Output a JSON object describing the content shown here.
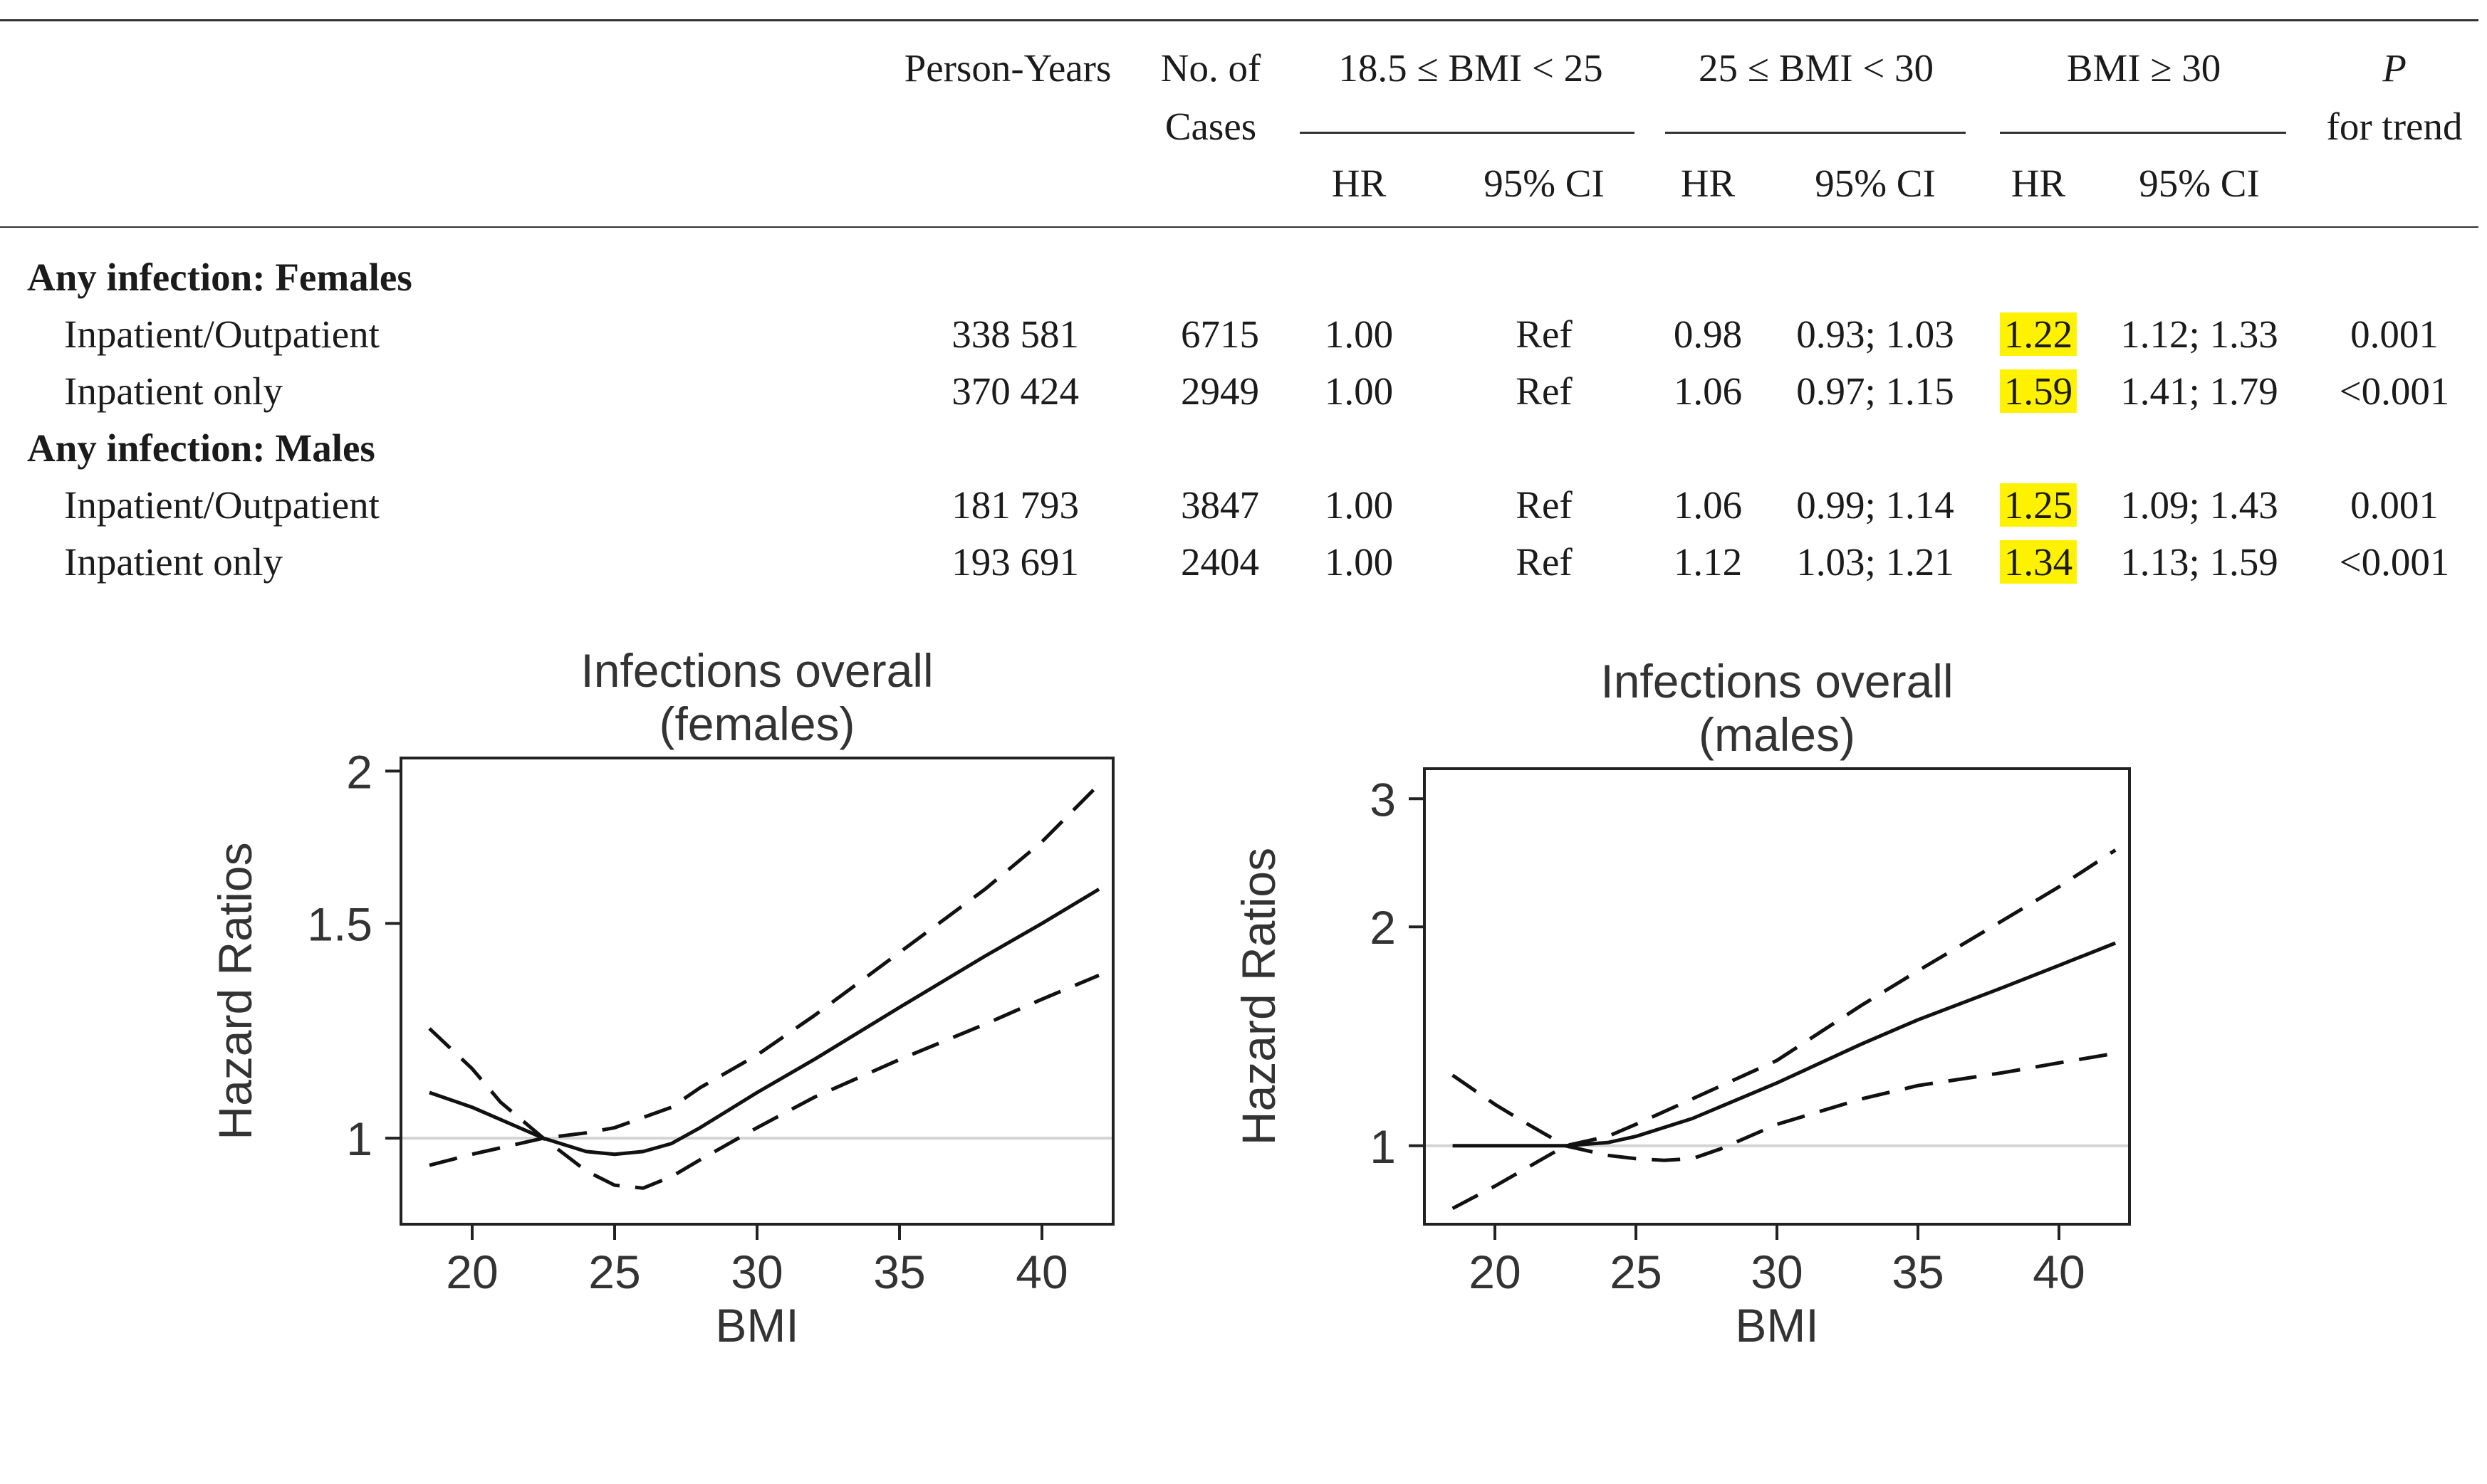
{
  "table": {
    "headers": {
      "person_years": "Person-Years",
      "cases_line1": "No. of",
      "cases_line2": "Cases",
      "group1": "18.5 ≤ BMI < 25",
      "group2": "25 ≤ BMI < 30",
      "group3": "BMI ≥ 30",
      "p_line1": "P",
      "p_line2": "for trend",
      "hr": "HR",
      "ci": "95% CI"
    },
    "sections": [
      {
        "title": "Any infection: Females",
        "rows": [
          {
            "label": "Inpatient/Outpatient",
            "person_years": "338 581",
            "cases": "6715",
            "hr1": "1.00",
            "ci1": "Ref",
            "hr2": "0.98",
            "ci2": "0.93; 1.03",
            "hr3": "1.22",
            "ci3": "1.12; 1.33",
            "p": "0.001"
          },
          {
            "label": "Inpatient only",
            "person_years": "370 424",
            "cases": "2949",
            "hr1": "1.00",
            "ci1": "Ref",
            "hr2": "1.06",
            "ci2": "0.97; 1.15",
            "hr3": "1.59",
            "ci3": "1.41; 1.79",
            "p": "<0.001"
          }
        ]
      },
      {
        "title": "Any infection: Males",
        "rows": [
          {
            "label": "Inpatient/Outpatient",
            "person_years": "181 793",
            "cases": "3847",
            "hr1": "1.00",
            "ci1": "Ref",
            "hr2": "1.06",
            "ci2": "0.99; 1.14",
            "hr3": "1.25",
            "ci3": "1.09; 1.43",
            "p": "0.001"
          },
          {
            "label": "Inpatient only",
            "person_years": "193 691",
            "cases": "2404",
            "hr1": "1.00",
            "ci1": "Ref",
            "hr2": "1.12",
            "ci2": "1.03; 1.21",
            "hr3": "1.34",
            "ci3": "1.13; 1.59",
            "p": "<0.001"
          }
        ]
      }
    ],
    "highlight_color": "#fff200"
  },
  "chart_data": [
    {
      "type": "line",
      "title_line1": "Infections overall",
      "title_line2": "(females)",
      "xlabel": "BMI",
      "ylabel": "Hazard Ratios",
      "xlim": [
        17.5,
        42.5
      ],
      "ylim": [
        0.85,
        2.05
      ],
      "log_y": true,
      "xticks": [
        20,
        25,
        30,
        35,
        40
      ],
      "yticks": [
        1,
        1.5,
        2
      ],
      "ytick_labels": [
        "1",
        "1.5",
        "2"
      ],
      "reference_line": 1,
      "series": [
        {
          "style": "solid",
          "x": [
            18.5,
            20,
            22.5,
            24,
            25,
            26,
            27,
            28,
            30,
            32,
            35,
            38,
            40,
            42
          ],
          "y": [
            1.09,
            1.06,
            1.0,
            0.975,
            0.97,
            0.975,
            0.99,
            1.02,
            1.09,
            1.16,
            1.28,
            1.41,
            1.5,
            1.6
          ]
        },
        {
          "style": "dashed",
          "x": [
            18.5,
            20,
            21,
            22.5,
            24,
            25,
            26,
            27,
            28,
            30,
            32,
            35,
            38,
            40,
            42
          ],
          "y": [
            1.23,
            1.14,
            1.07,
            1.0,
            0.94,
            0.915,
            0.91,
            0.93,
            0.96,
            1.02,
            1.08,
            1.16,
            1.24,
            1.3,
            1.36
          ]
        },
        {
          "style": "dashed",
          "x": [
            18.5,
            20,
            22.5,
            24,
            25,
            27,
            28,
            30,
            32,
            35,
            38,
            40,
            42
          ],
          "y": [
            0.95,
            0.97,
            1.0,
            1.01,
            1.02,
            1.06,
            1.1,
            1.17,
            1.26,
            1.42,
            1.6,
            1.75,
            1.95
          ]
        }
      ]
    },
    {
      "type": "line",
      "title_line1": "Infections overall",
      "title_line2": "(males)",
      "xlabel": "BMI",
      "ylabel": "Hazard Ratios",
      "xlim": [
        17.5,
        42.5
      ],
      "ylim": [
        0.78,
        3.3
      ],
      "log_y": true,
      "xticks": [
        20,
        25,
        30,
        35,
        40
      ],
      "yticks": [
        1,
        2,
        3
      ],
      "ytick_labels": [
        "1",
        "2",
        "3"
      ],
      "reference_line": 1,
      "series": [
        {
          "style": "solid",
          "x": [
            18.5,
            20,
            22.5,
            24,
            25,
            27,
            30,
            33,
            35,
            38,
            40,
            42
          ],
          "y": [
            1.0,
            1.0,
            1.0,
            1.01,
            1.03,
            1.09,
            1.22,
            1.38,
            1.49,
            1.65,
            1.77,
            1.9
          ]
        },
        {
          "style": "dashed",
          "x": [
            18.5,
            20,
            21,
            22.5,
            24,
            25,
            26,
            27,
            28,
            30,
            33,
            35,
            38,
            40,
            42
          ],
          "y": [
            1.25,
            1.14,
            1.08,
            1.0,
            0.97,
            0.96,
            0.955,
            0.96,
            0.99,
            1.07,
            1.16,
            1.21,
            1.26,
            1.3,
            1.34
          ]
        },
        {
          "style": "dashed",
          "x": [
            18.5,
            20,
            22.5,
            24,
            25,
            27,
            30,
            33,
            35,
            38,
            40,
            42
          ],
          "y": [
            0.82,
            0.88,
            1.0,
            1.03,
            1.07,
            1.16,
            1.31,
            1.56,
            1.74,
            2.04,
            2.27,
            2.55
          ]
        }
      ]
    }
  ]
}
